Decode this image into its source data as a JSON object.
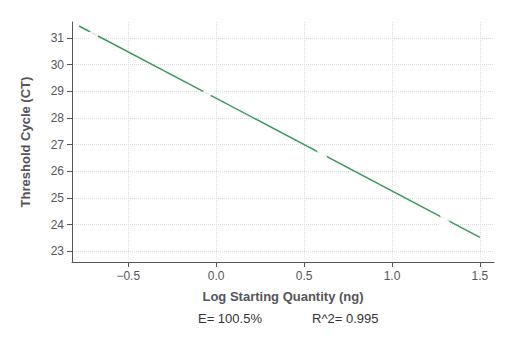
{
  "chart_data": {
    "type": "scatter",
    "x_label": "Log Starting Quantity (ng)",
    "y_label": "Threshold Cycle (CT)",
    "annotations": [
      "E= 100.5%",
      "R^2= 0.995"
    ],
    "series": [
      {
        "type": "line",
        "color": "#3a9a5c",
        "x": [
          -0.78,
          1.5
        ],
        "values": [
          31.4498,
          23.5264
        ]
      },
      {
        "type": "scatter",
        "color": "#3a9a5c",
        "marker": "hollow",
        "x": [
          -0.699,
          -0.046,
          0.602,
          0.602,
          1.301,
          1.301
        ],
        "values": [
          31.1,
          29.0,
          26.75,
          26.55,
          24.35,
          24.05
        ]
      }
    ],
    "xlim": [
      -0.82,
      1.58
    ],
    "xticks": [
      {
        "value": -0.5,
        "label": "−0.5"
      },
      {
        "value": 0.0,
        "label": "0.0"
      },
      0.5,
      {
        "value": 1.0,
        "label": "1.0"
      },
      1.5
    ],
    "ylim": [
      22.6,
      31.6
    ],
    "yticks": [
      23,
      24,
      25,
      26,
      27,
      28,
      29,
      30,
      31
    ],
    "grid": true
  }
}
